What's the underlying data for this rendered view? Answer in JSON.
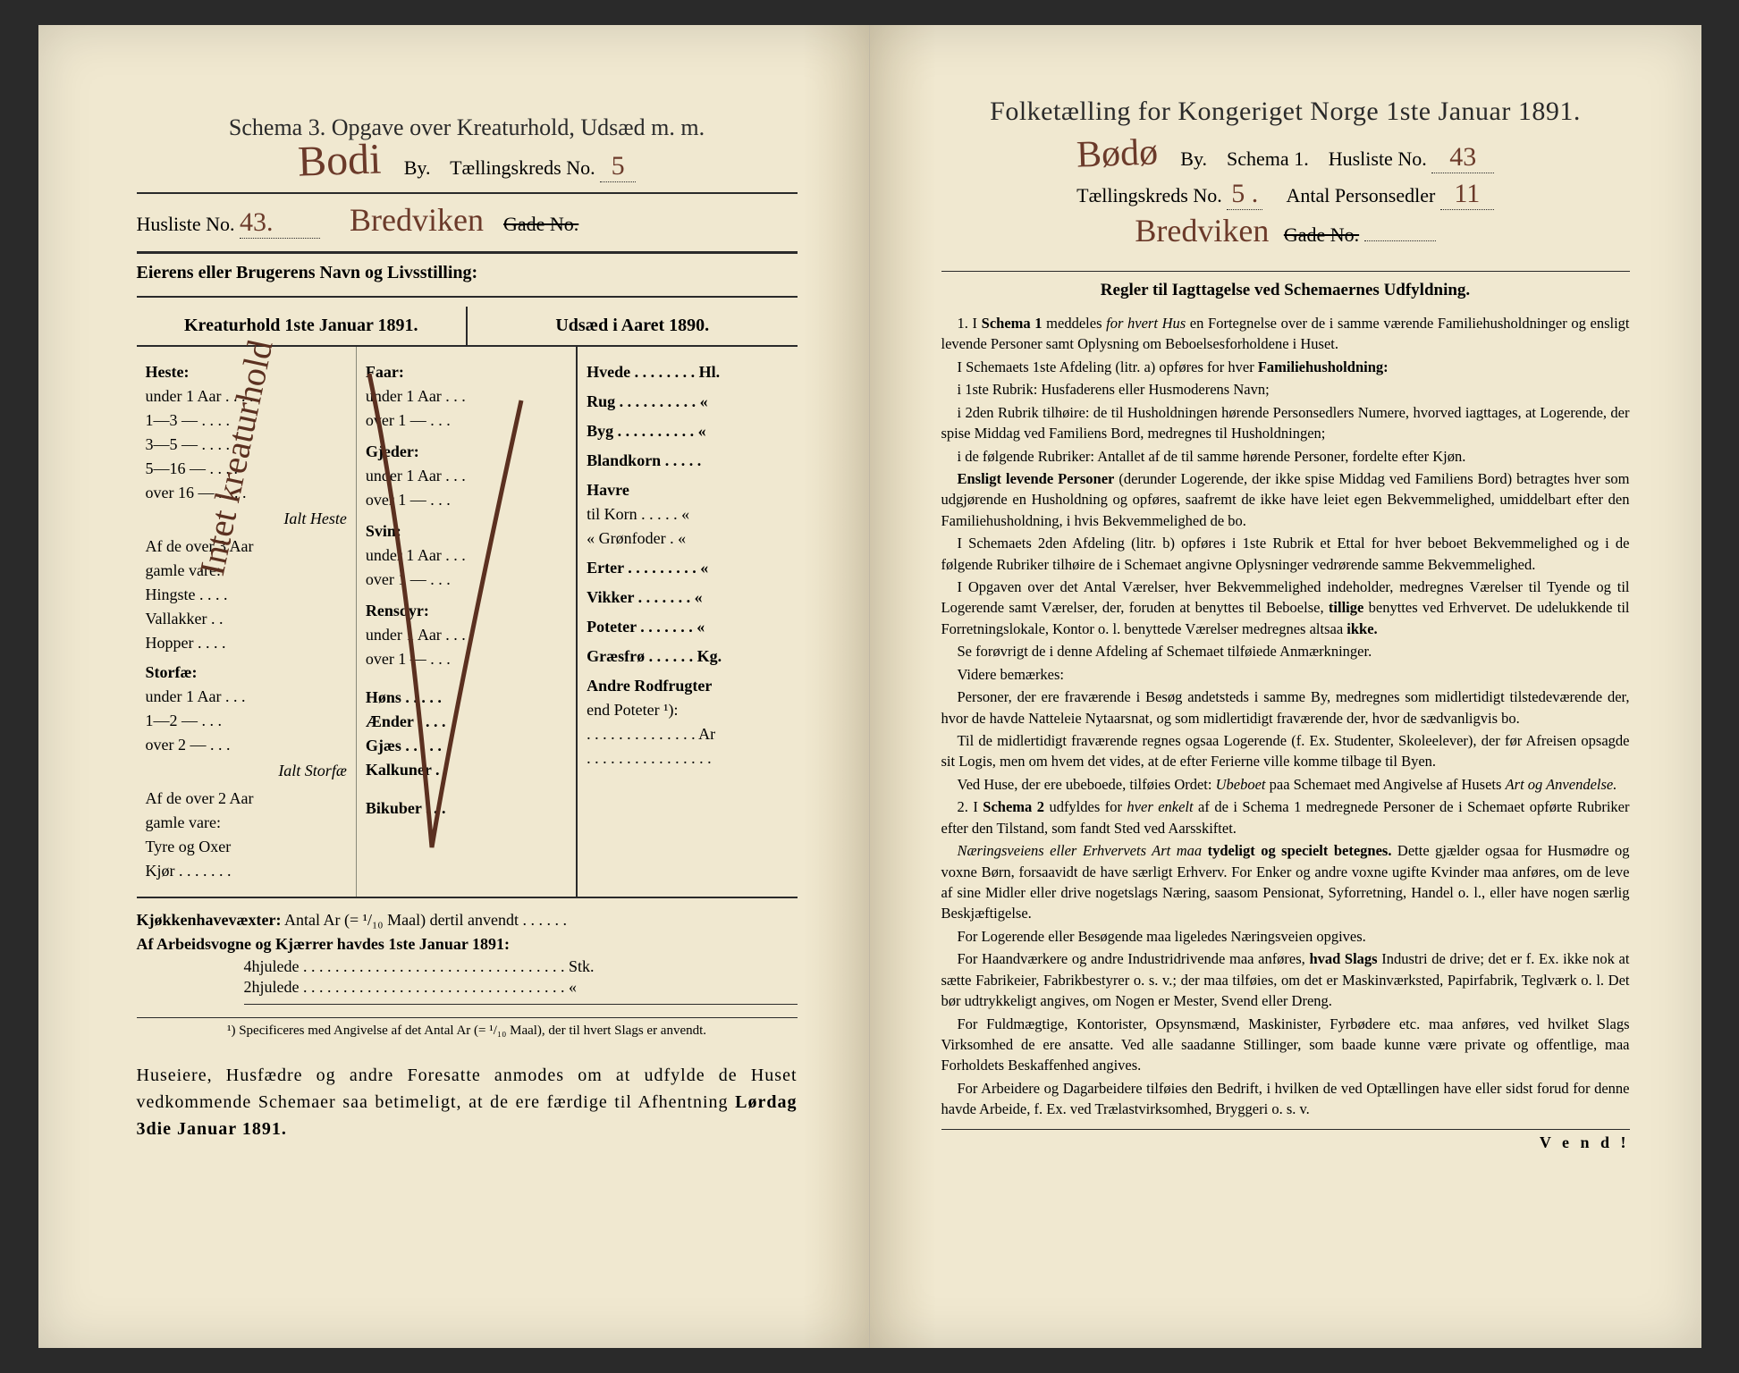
{
  "left": {
    "schema_line": "Schema 3.  Opgave over Kreaturhold, Udsæd m. m.",
    "city_hand": "Bodi",
    "by_label": "By.",
    "kreds_label": "Tællingskreds No.",
    "kreds_no": "5",
    "husliste_label": "Husliste No.",
    "husliste_no": "43.",
    "street_hand": "Bredviken",
    "gade_label": "Gade No.",
    "eier_line": "Eierens eller Brugerens Navn og Livsstilling:",
    "col_a_title": "Kreaturhold 1ste Januar 1891.",
    "col_c_title": "Udsæd i Aaret 1890.",
    "diag_text": "Intet kreaturhold",
    "colA": {
      "heste": "Heste:",
      "rows_heste": [
        "under 1 Aar . . . .",
        "1—3   —  . . . .",
        "3—5   —  . . . .",
        "5—16  —  . . . .",
        "over 16 —  . . . ."
      ],
      "ialt_heste": "Ialt Heste",
      "af3": "Af de over 3 Aar",
      "gamle": "gamle vare:",
      "sub": [
        "Hingste . . . .",
        "Vallakker . .",
        "Hopper . . . ."
      ],
      "storfae": "Storfæ:",
      "rows_stor": [
        "under 1 Aar . . .",
        "1—2   —  . . .",
        "over 2 —  . . ."
      ],
      "ialt_stor": "Ialt Storfæ",
      "af2": "Af de over 2 Aar",
      "sub2": [
        "Tyre og Oxer",
        "Kjør . . . . . . ."
      ]
    },
    "colB": {
      "faar": "Faar:",
      "rows_faar": [
        "under 1 Aar . . .",
        "over 1 —  . . ."
      ],
      "gjeder": "Gjeder:",
      "rows_gjed": [
        "under 1 Aar . . .",
        "over 1 —  . . ."
      ],
      "svin": "Svin:",
      "rows_svin": [
        "under 1 Aar . . .",
        "over 1 —  . . ."
      ],
      "ren": "Rensdyr:",
      "rows_ren": [
        "under 1 Aar . . .",
        "over 1 —  . . ."
      ],
      "hons": "Høns . . . . .",
      "aender": "Ænder . . . .",
      "gjaes": "Gjæs . . . . .",
      "kalk": "Kalkuner . .",
      "bikuber": "Bikuber . . ."
    },
    "colC": {
      "rows": [
        "Hvede . . . . . . . . Hl.",
        "Rug . . . . . . . . . .  «",
        "Byg . . . . . . . . . .  «",
        "Blandkorn . . . . .",
        "Havre",
        "   til Korn . . . . .  «",
        "   « Grønfoder .  «",
        "Erter . . . . . . . . .  «",
        "Vikker . . . . . . .  «",
        "Poteter . . . . . . .  «",
        "Græsfrø . . . . . . Kg.",
        "Andre Rodfrugter",
        "   end Poteter ¹):",
        ". . . . . . . . . . . . . . Ar",
        ". . . . . . . . . . . . . . . ."
      ]
    },
    "footer1_label": "Kjøkkenhavevæxter:",
    "footer1_text": "Antal Ar (= ¹/₁₀ Maal) dertil anvendt . . . . . .",
    "footer2": "Af Arbeidsvogne og Kjærrer havdes 1ste Januar 1891:",
    "footer2a": "4hjulede . . . . . . . . . . . . . . . . . . . . . . . . . . . . . . . . . Stk.",
    "footer2b": "2hjulede . . . . . . . . . . . . . . . . . . . . . . . . . . . . . . . . .   «",
    "footnote": "¹) Specificeres med Angivelse af det Antal Ar (= ¹/₁₀ Maal), der til hvert Slags er anvendt.",
    "bottom": "Huseiere, Husfædre og andre Foresatte anmodes om at udfylde de Huset vedkommende Schemaer saa betimeligt, at de ere færdige til Afhentning ",
    "bottom_bold": "Lørdag 3die Januar 1891."
  },
  "right": {
    "title": "Folketælling for Kongeriget Norge 1ste Januar 1891.",
    "city_hand": "Bødø",
    "by_label": "By.",
    "schema_label": "Schema 1.",
    "husliste_label": "Husliste No.",
    "husliste_no": "43",
    "kreds_label": "Tællingskreds No.",
    "kreds_no": "5 .",
    "antal_label": "Antal Personsedler",
    "antal_no": "11",
    "street_hand": "Bredviken",
    "gade_label": "Gade No.",
    "rules_title": "Regler til Iagttagelse ved Schemaernes Udfyldning.",
    "paragraphs": [
      {
        "t": "1. I <b>Schema 1</b> meddeles <i>for hvert Hus</i> en Fortegnelse over de i samme værende Familiehusholdninger og ensligt levende Personer samt Oplysning om Beboelsesforholdene i Huset."
      },
      {
        "t": "I Schemaets 1ste Afdeling (litr. a) opføres for hver <b>Familiehusholdning:</b>"
      },
      {
        "t": "i 1ste Rubrik: Husfaderens eller Husmoderens Navn;"
      },
      {
        "t": "i 2den Rubrik tilhøire: de til Husholdningen hørende Personsedlers Numere, hvorved iagttages, at Logerende, der spise Middag ved Familiens Bord, medregnes til Husholdningen;"
      },
      {
        "t": "i de følgende Rubriker: Antallet af de til samme hørende Personer, fordelte efter Kjøn."
      },
      {
        "t": "<b>Ensligt levende Personer</b> (derunder Logerende, der ikke spise Middag ved Familiens Bord) betragtes hver som udgjørende en Husholdning og opføres, saafremt de ikke have leiet egen Bekvemmelighed, umiddelbart efter den Familiehusholdning, i hvis Bekvemmelighed de bo."
      },
      {
        "t": "I Schemaets 2den Afdeling (litr. b) opføres i 1ste Rubrik et Ettal for hver beboet Bekvemmelighed og i de følgende Rubriker tilhøire de i Schemaet angivne Oplysninger vedrørende samme Bekvemmelighed."
      },
      {
        "t": "I Opgaven over det Antal Værelser, hver Bekvemmelighed indeholder, medregnes Værelser til Tyende og til Logerende samt Værelser, der, foruden at benyttes til Beboelse, <b>tillige</b> benyttes ved Erhvervet. De udelukkende til Forretningslokale, Kontor o. l. benyttede Værelser medregnes altsaa <b>ikke.</b>"
      },
      {
        "t": "Se forøvrigt de i denne Afdeling af Schemaet tilføiede Anmærkninger."
      },
      {
        "t": "Videre bemærkes:"
      },
      {
        "t": "Personer, der ere fraværende i Besøg andetsteds i samme By, medregnes som midlertidigt tilstedeværende der, hvor de havde Natteleie Nytaarsnat, og som midlertidigt fraværende der, hvor de sædvanligvis bo."
      },
      {
        "t": "Til de midlertidigt fraværende regnes ogsaa Logerende (f. Ex. Studenter, Skoleelever), der før Afreisen opsagde sit Logis, men om hvem det vides, at de efter Ferierne ville komme tilbage til Byen."
      },
      {
        "t": "Ved Huse, der ere ubeboede, tilføies Ordet: <i>Ubeboet</i> paa Schemaet med Angivelse af Husets <i>Art og Anvendelse.</i>"
      },
      {
        "t": "2. I <b>Schema 2</b> udfyldes for <i>hver enkelt</i> af de i Schema 1 medregnede Personer de i Schemaet opførte Rubriker efter den Tilstand, som fandt Sted ved Aarsskiftet."
      },
      {
        "t": "<i>Næringsveiens eller Erhvervets Art maa</i> <b>tydeligt og specielt betegnes.</b> Dette gjælder ogsaa for Husmødre og voxne Børn, forsaavidt de have særligt Erhverv. For Enker og andre voxne ugifte Kvinder maa anføres, om de leve af sine Midler eller drive nogetslags Næring, saasom Pensionat, Syforretning, Handel o. l., eller have nogen særlig Beskjæftigelse."
      },
      {
        "t": "For Logerende eller Besøgende maa ligeledes Næringsveien opgives."
      },
      {
        "t": "For Haandværkere og andre Industridrivende maa anføres, <b>hvad Slags</b> Industri de drive; det er f. Ex. ikke nok at sætte Fabrikeier, Fabrikbestyrer o. s. v.; der maa tilføies, om det er Maskinværksted, Papirfabrik, Teglværk o. l. Det bør udtrykkeligt angives, om Nogen er Mester, Svend eller Dreng."
      },
      {
        "t": "For Fuldmægtige, Kontorister, Opsynsmænd, Maskinister, Fyrbødere etc. maa anføres, ved hvilket Slags Virksomhed de ere ansatte. Ved alle saadanne Stillinger, som baade kunne være private og offentlige, maa Forholdets Beskaffenhed angives."
      },
      {
        "t": "For Arbeidere og Dagarbeidere tilføies den Bedrift, i hvilken de ved Optællingen have eller sidst forud for denne havde Arbeide, f. Ex. ved Trælastvirksomhed, Bryggeri o. s. v."
      }
    ],
    "vend": "V e n d !"
  }
}
